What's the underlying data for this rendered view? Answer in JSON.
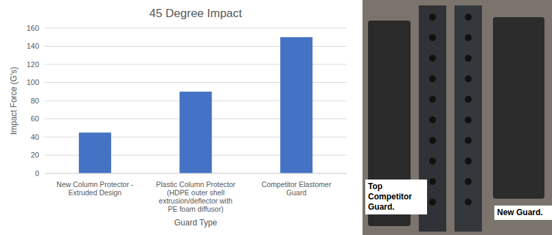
{
  "chart_data": {
    "type": "bar",
    "title": "45 Degree Impact",
    "categories": [
      "New Column Protector - Extruded Design",
      "Plastic Column Protector (HDPE outer shell extrusion/deflector with PE foam diffusor)",
      "Competitor Elastomer Guard"
    ],
    "values": [
      45,
      90,
      150
    ],
    "color": "#4472c4",
    "ylim": [
      0,
      160
    ],
    "yticks": [
      0,
      20,
      40,
      60,
      80,
      100,
      120,
      140,
      160
    ],
    "grid": true,
    "x_label": "Guard Type",
    "y_label": "Impact Force (G's)",
    "annotations": [
      "Top Competitor Guard.",
      "New Guard."
    ]
  }
}
